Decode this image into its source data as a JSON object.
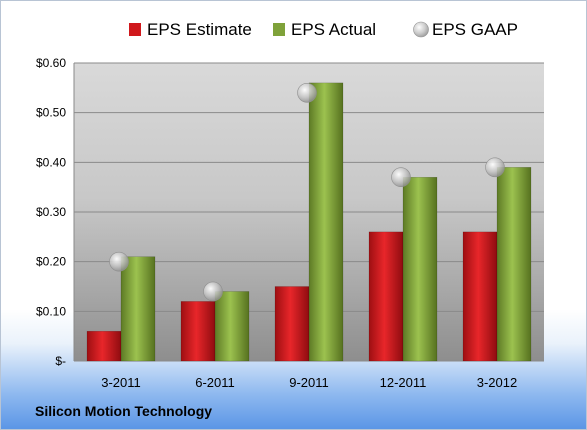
{
  "chart_data": {
    "type": "bar",
    "categories": [
      "3-2011",
      "6-2011",
      "9-2011",
      "12-2011",
      "3-2012"
    ],
    "series": [
      {
        "name": "EPS Estimate",
        "kind": "bar",
        "color": "#d0181c",
        "values": [
          0.06,
          0.12,
          0.15,
          0.26,
          0.26
        ]
      },
      {
        "name": "EPS Actual",
        "kind": "bar",
        "color": "#7fa23a",
        "values": [
          0.21,
          0.14,
          0.56,
          0.37,
          0.39
        ]
      },
      {
        "name": "EPS GAAP",
        "kind": "marker",
        "color": "#b4b4b4",
        "values": [
          0.2,
          0.14,
          0.54,
          0.37,
          0.39
        ]
      }
    ],
    "y_ticks": [
      "$-",
      "$0.10",
      "$0.20",
      "$0.30",
      "$0.40",
      "$0.50",
      "$0.60"
    ],
    "ylim": [
      0,
      0.6
    ],
    "grid": true,
    "legend": "top",
    "title": "",
    "xlabel": "",
    "ylabel": ""
  },
  "footer": {
    "company": "Silicon Motion Technology"
  }
}
